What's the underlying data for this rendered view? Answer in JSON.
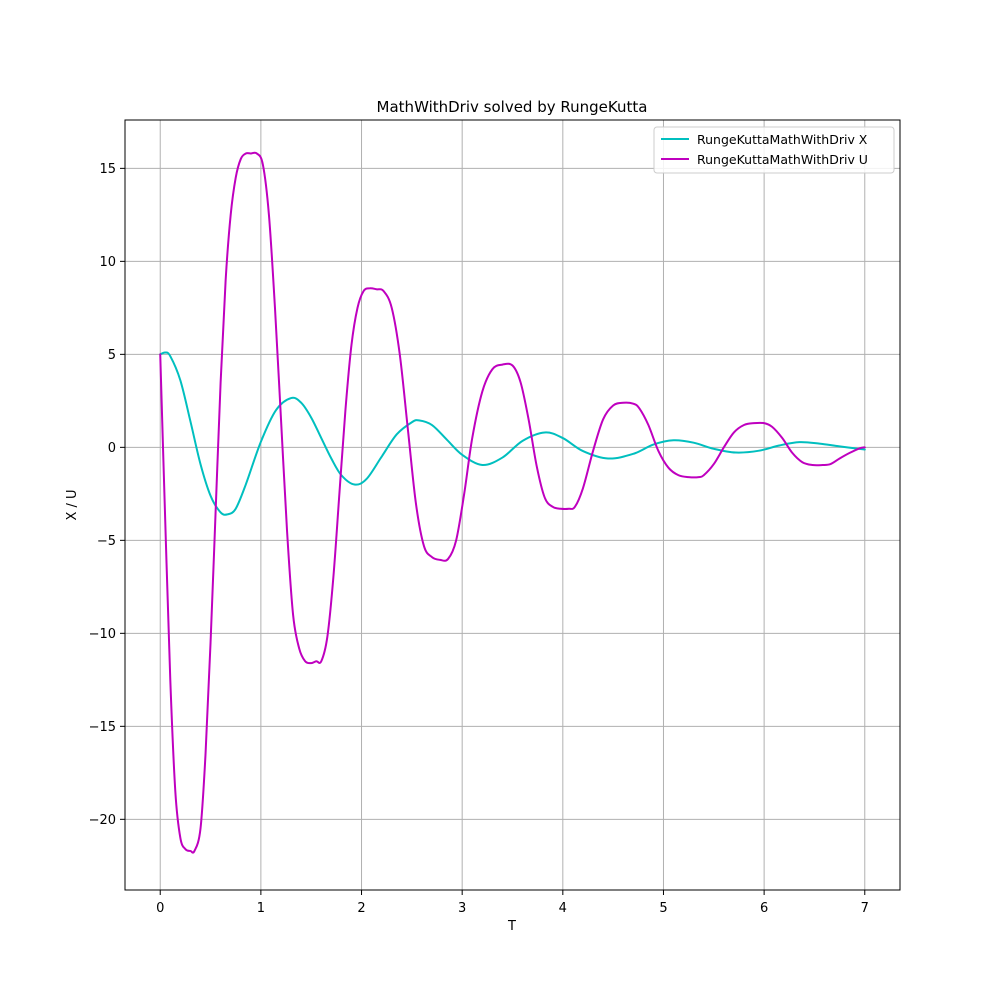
{
  "chart_data": {
    "type": "line",
    "title": "MathWithDriv solved by RungeKutta",
    "xlabel": "T",
    "ylabel": "X / U",
    "xlim": [
      -0.35,
      7.35
    ],
    "ylim": [
      -23.8,
      17.6
    ],
    "xticks": [
      0,
      1,
      2,
      3,
      4,
      5,
      6,
      7
    ],
    "xtick_labels": [
      "0",
      "1",
      "2",
      "3",
      "4",
      "5",
      "6",
      "7"
    ],
    "yticks": [
      -20,
      -15,
      -10,
      -5,
      0,
      5,
      10,
      15
    ],
    "ytick_labels": [
      "−20",
      "−15",
      "−10",
      "−5",
      "0",
      "5",
      "10",
      "15"
    ],
    "grid": true,
    "legend_position": "top-right",
    "series": [
      {
        "name": "RungeKuttaMathWithDriv X",
        "color": "#00bfbf",
        "x": [
          0,
          0.05,
          0.1,
          0.2,
          0.3,
          0.4,
          0.5,
          0.6,
          0.67,
          0.75,
          0.85,
          1.0,
          1.15,
          1.3,
          1.4,
          1.5,
          1.6,
          1.7,
          1.8,
          1.93,
          2.05,
          2.2,
          2.35,
          2.5,
          2.57,
          2.7,
          2.85,
          3.0,
          3.2,
          3.4,
          3.6,
          3.82,
          4.0,
          4.2,
          4.45,
          4.7,
          4.9,
          5.1,
          5.3,
          5.5,
          5.72,
          5.95,
          6.15,
          6.35,
          6.55,
          6.75,
          7.0
        ],
        "values": [
          5.0,
          5.1,
          4.9,
          3.6,
          1.4,
          -0.9,
          -2.6,
          -3.5,
          -3.6,
          -3.3,
          -2.0,
          0.3,
          2.0,
          2.65,
          2.4,
          1.6,
          0.5,
          -0.6,
          -1.5,
          -2.0,
          -1.7,
          -0.5,
          0.7,
          1.35,
          1.45,
          1.2,
          0.4,
          -0.4,
          -0.95,
          -0.55,
          0.35,
          0.8,
          0.5,
          -0.2,
          -0.6,
          -0.35,
          0.15,
          0.38,
          0.25,
          -0.08,
          -0.28,
          -0.18,
          0.1,
          0.28,
          0.2,
          0.05,
          -0.12
        ]
      },
      {
        "name": "RungeKuttaMathWithDriv U",
        "color": "#bf00bf",
        "x": [
          0,
          0.05,
          0.1,
          0.15,
          0.2,
          0.25,
          0.3,
          0.34,
          0.4,
          0.45,
          0.5,
          0.55,
          0.6,
          0.65,
          0.7,
          0.75,
          0.8,
          0.85,
          0.9,
          0.96,
          1.02,
          1.08,
          1.14,
          1.2,
          1.26,
          1.32,
          1.38,
          1.44,
          1.5,
          1.55,
          1.6,
          1.66,
          1.72,
          1.78,
          1.84,
          1.9,
          1.96,
          2.02,
          2.08,
          2.15,
          2.22,
          2.3,
          2.38,
          2.46,
          2.54,
          2.62,
          2.7,
          2.78,
          2.86,
          2.94,
          3.02,
          3.1,
          3.2,
          3.3,
          3.4,
          3.5,
          3.58,
          3.66,
          3.74,
          3.82,
          3.9,
          3.98,
          4.06,
          4.12,
          4.2,
          4.3,
          4.4,
          4.5,
          4.6,
          4.7,
          4.76,
          4.85,
          4.95,
          5.05,
          5.15,
          5.25,
          5.35,
          5.4,
          5.5,
          5.6,
          5.7,
          5.8,
          5.9,
          6.0,
          6.08,
          6.18,
          6.28,
          6.38,
          6.48,
          6.58,
          6.66,
          6.75,
          6.85,
          6.95,
          7.0
        ],
        "values": [
          5.0,
          -4.0,
          -12.5,
          -18.5,
          -21.0,
          -21.6,
          -21.7,
          -21.7,
          -20.5,
          -16.5,
          -10.5,
          -3.5,
          3.5,
          9.0,
          12.5,
          14.5,
          15.5,
          15.8,
          15.8,
          15.8,
          15.2,
          12.5,
          7.5,
          1.5,
          -4.5,
          -9.0,
          -10.8,
          -11.5,
          -11.6,
          -11.5,
          -11.5,
          -10.2,
          -7.0,
          -2.5,
          2.0,
          5.5,
          7.5,
          8.4,
          8.55,
          8.5,
          8.4,
          7.5,
          5.0,
          1.0,
          -3.0,
          -5.3,
          -5.9,
          -6.05,
          -6.0,
          -5.0,
          -2.5,
          0.5,
          3.0,
          4.2,
          4.45,
          4.4,
          3.5,
          1.5,
          -1.0,
          -2.7,
          -3.2,
          -3.3,
          -3.3,
          -3.2,
          -2.2,
          -0.2,
          1.5,
          2.25,
          2.4,
          2.35,
          2.1,
          1.2,
          -0.2,
          -1.1,
          -1.5,
          -1.6,
          -1.6,
          -1.5,
          -0.9,
          0.0,
          0.8,
          1.2,
          1.3,
          1.3,
          1.1,
          0.5,
          -0.3,
          -0.8,
          -0.95,
          -0.95,
          -0.9,
          -0.6,
          -0.3,
          -0.05,
          0.0
        ]
      }
    ]
  }
}
